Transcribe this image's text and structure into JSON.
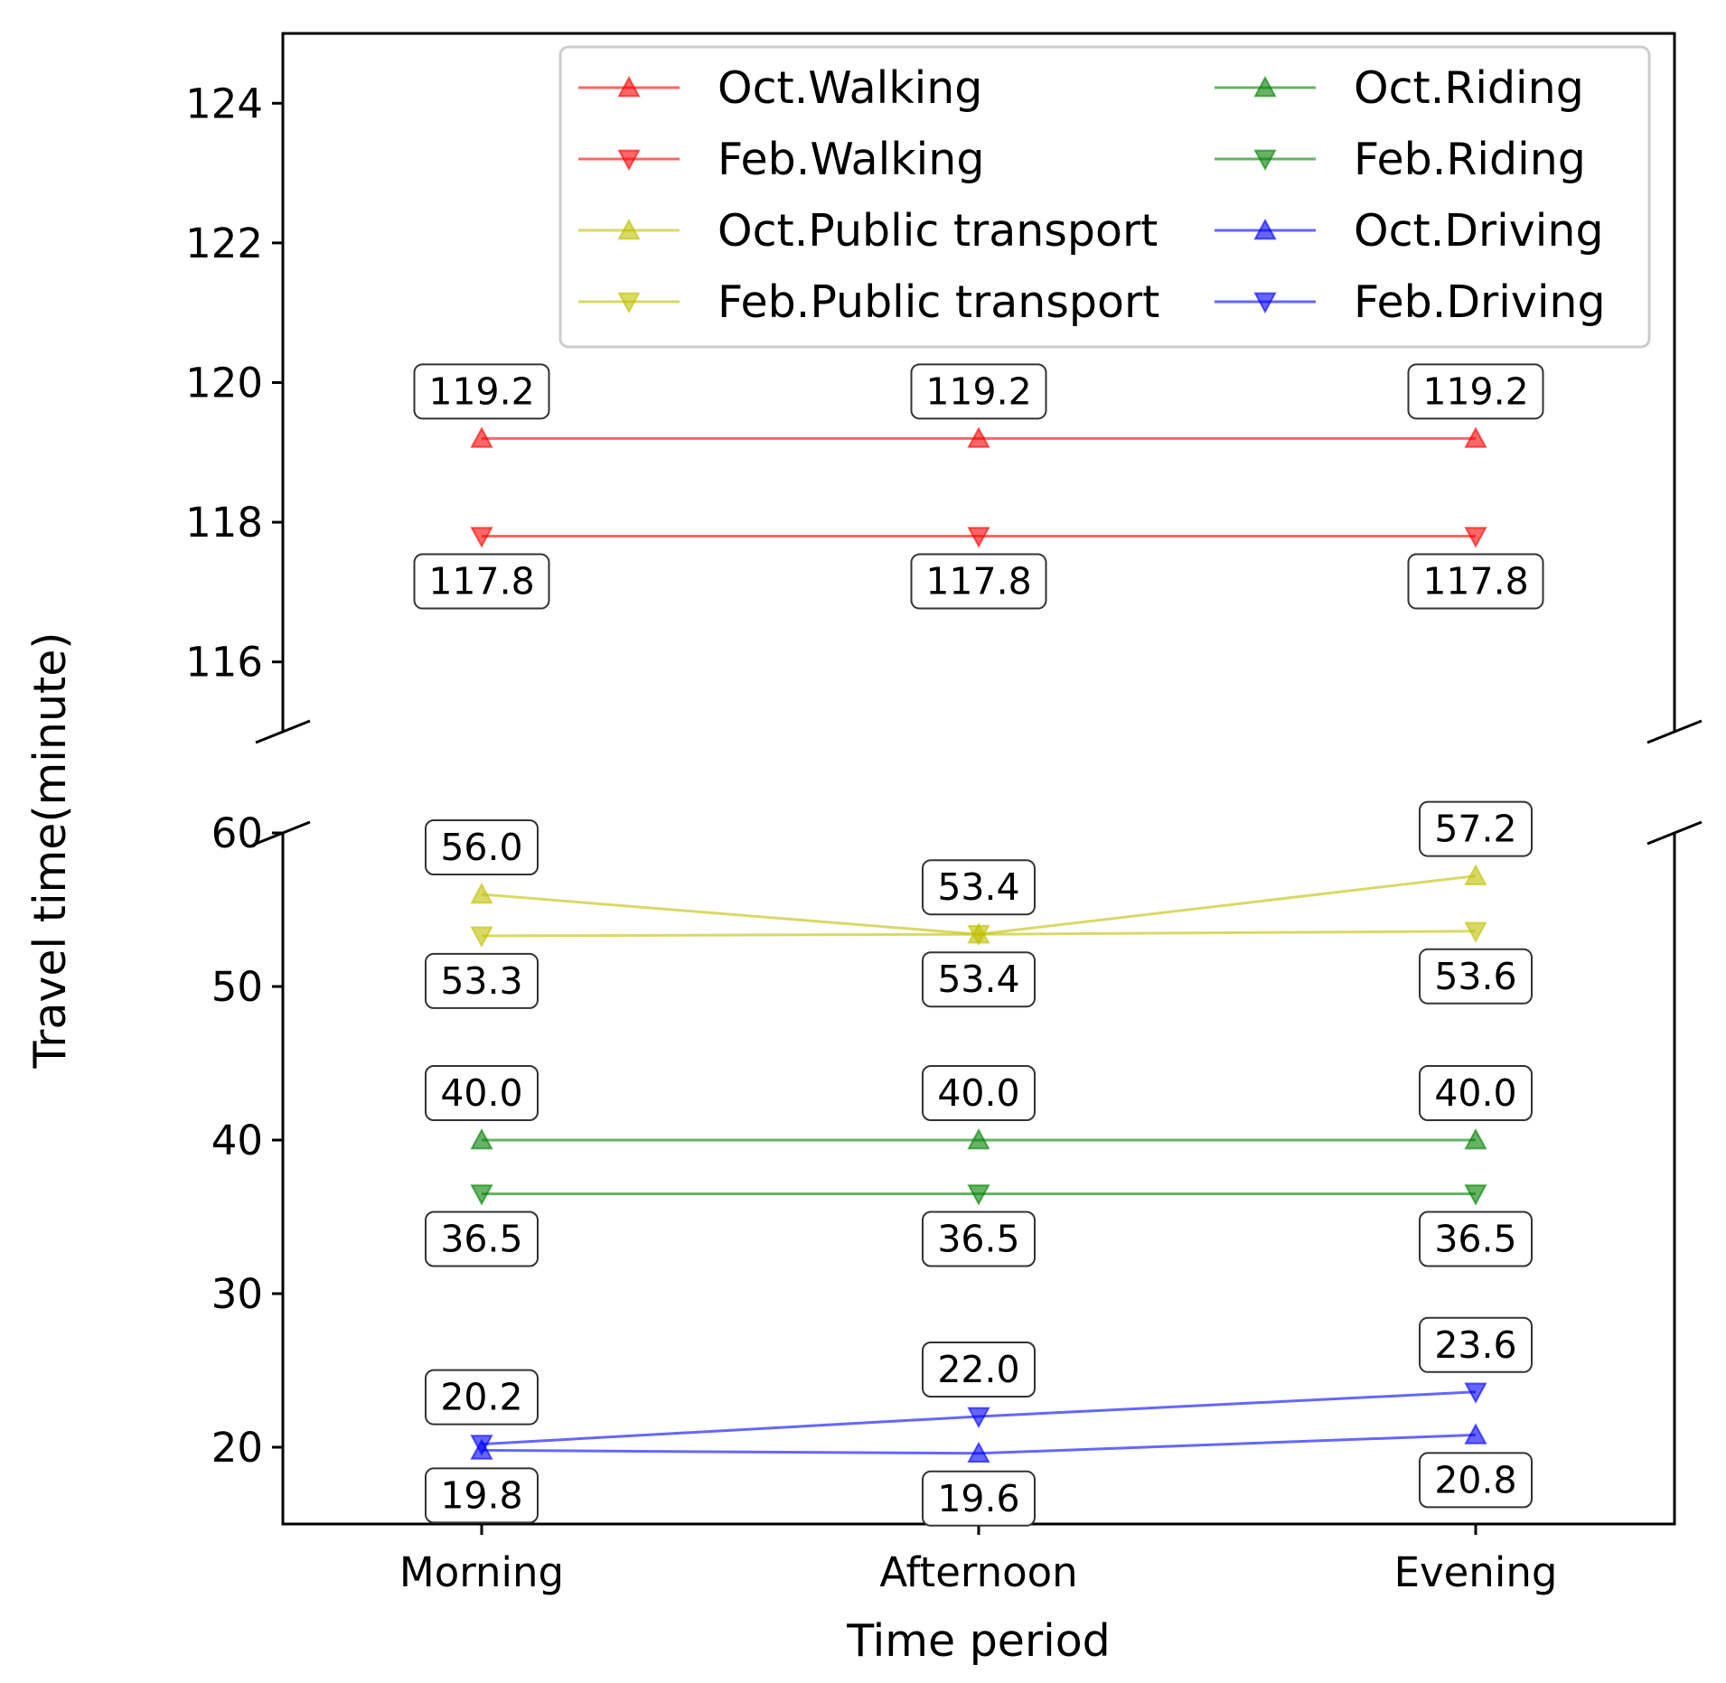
{
  "chart_data": {
    "type": "line",
    "broken_y_axis": true,
    "xlabel": "Time period",
    "ylabel": "Travel time(minute)",
    "categories": [
      "Morning",
      "Afternoon",
      "Evening"
    ],
    "panels": [
      {
        "name": "top",
        "ylim": [
          115,
          125
        ],
        "yticks": [
          116,
          118,
          120,
          122,
          124
        ]
      },
      {
        "name": "bottom",
        "ylim": [
          15,
          60
        ],
        "yticks": [
          20,
          30,
          40,
          50,
          60
        ]
      }
    ],
    "series": [
      {
        "name": "Oct.Walking",
        "color": "#ff0000",
        "marker": "triangle-up",
        "panel": "top",
        "values": [
          119.2,
          119.2,
          119.2
        ],
        "labels": [
          "119.2",
          "119.2",
          "119.2"
        ],
        "label_pos": [
          "above",
          "above",
          "above"
        ]
      },
      {
        "name": "Feb.Walking",
        "color": "#ff0000",
        "marker": "triangle-down",
        "panel": "top",
        "values": [
          117.8,
          117.8,
          117.8
        ],
        "labels": [
          "117.8",
          "117.8",
          "117.8"
        ],
        "label_pos": [
          "below",
          "below",
          "below"
        ]
      },
      {
        "name": "Oct.Public transport",
        "color": "#bfbf00",
        "marker": "triangle-up",
        "panel": "bottom",
        "values": [
          56.0,
          53.4,
          57.2
        ],
        "labels": [
          "56.0",
          "53.4",
          "57.2"
        ],
        "label_pos": [
          "above",
          "above",
          "above"
        ]
      },
      {
        "name": "Feb.Public transport",
        "color": "#bfbf00",
        "marker": "triangle-down",
        "panel": "bottom",
        "values": [
          53.3,
          53.4,
          53.6
        ],
        "labels": [
          "53.3",
          "53.4",
          "53.6"
        ],
        "label_pos": [
          "below",
          "below",
          "below"
        ]
      },
      {
        "name": "Oct.Riding",
        "color": "#008000",
        "marker": "triangle-up",
        "panel": "bottom",
        "values": [
          40.0,
          40.0,
          40.0
        ],
        "labels": [
          "40.0",
          "40.0",
          "40.0"
        ],
        "label_pos": [
          "above",
          "above",
          "above"
        ]
      },
      {
        "name": "Feb.Riding",
        "color": "#008000",
        "marker": "triangle-down",
        "panel": "bottom",
        "values": [
          36.5,
          36.5,
          36.5
        ],
        "labels": [
          "36.5",
          "36.5",
          "36.5"
        ],
        "label_pos": [
          "below",
          "below",
          "below"
        ]
      },
      {
        "name": "Oct.Driving",
        "color": "#0000ff",
        "marker": "triangle-up",
        "panel": "bottom",
        "values": [
          19.8,
          19.6,
          20.8
        ],
        "labels": [
          "19.8",
          "19.6",
          "20.8"
        ],
        "label_pos": [
          "below",
          "below",
          "below"
        ]
      },
      {
        "name": "Feb.Driving",
        "color": "#0000ff",
        "marker": "triangle-down",
        "panel": "bottom",
        "values": [
          20.2,
          22.0,
          23.6
        ],
        "labels": [
          "20.2",
          "22.0",
          "23.6"
        ],
        "label_pos": [
          "above",
          "above",
          "above"
        ]
      }
    ],
    "legend": {
      "placement": "top-right",
      "columns": 2
    },
    "grid": false
  }
}
